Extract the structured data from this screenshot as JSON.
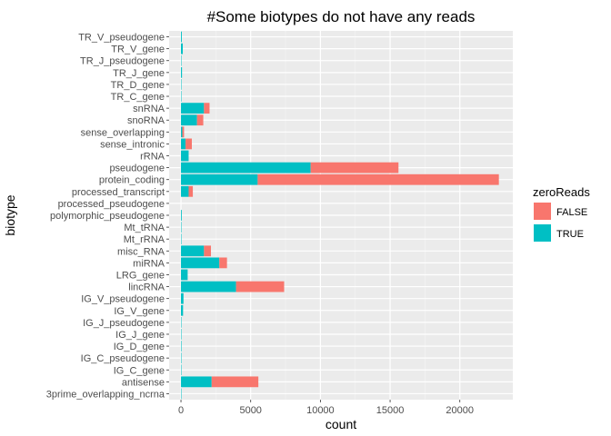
{
  "chart_data": {
    "type": "bar",
    "orientation": "horizontal",
    "stacked": true,
    "title": "#Some biotypes do not have any reads",
    "xlabel": "count",
    "ylabel": "biotype",
    "xlim": [
      -850,
      23800
    ],
    "xticks": [
      0,
      5000,
      10000,
      15000,
      20000
    ],
    "xtick_labels": [
      "0",
      "5000",
      "10000",
      "15000",
      "20000"
    ],
    "grid": true,
    "legend": {
      "title": "zeroReads",
      "position": "right",
      "entries": [
        {
          "label": "FALSE",
          "color": "#F8766D"
        },
        {
          "label": "TRUE",
          "color": "#00BFC4"
        }
      ]
    },
    "categories": [
      "3prime_overlapping_ncrna",
      "antisense",
      "IG_C_gene",
      "IG_C_pseudogene",
      "IG_D_gene",
      "IG_J_gene",
      "IG_J_pseudogene",
      "IG_V_gene",
      "IG_V_pseudogene",
      "lincRNA",
      "LRG_gene",
      "miRNA",
      "misc_RNA",
      "Mt_rRNA",
      "Mt_tRNA",
      "polymorphic_pseudogene",
      "processed_pseudogene",
      "processed_transcript",
      "protein_coding",
      "pseudogene",
      "rRNA",
      "sense_intronic",
      "sense_overlapping",
      "snoRNA",
      "snRNA",
      "TR_C_gene",
      "TR_D_gene",
      "TR_J_gene",
      "TR_J_pseudogene",
      "TR_V_gene",
      "TR_V_pseudogene"
    ],
    "series": [
      {
        "name": "TRUE",
        "color": "#00BFC4",
        "values": [
          30,
          2200,
          14,
          9,
          37,
          18,
          3,
          150,
          180,
          3950,
          480,
          2750,
          1650,
          2,
          22,
          55,
          0,
          550,
          5500,
          9300,
          550,
          330,
          100,
          1150,
          1650,
          5,
          3,
          74,
          4,
          130,
          60
        ]
      },
      {
        "name": "FALSE",
        "color": "#F8766D",
        "values": [
          0,
          3350,
          0,
          0,
          0,
          0,
          0,
          0,
          0,
          3450,
          0,
          550,
          500,
          0,
          0,
          0,
          0,
          300,
          17300,
          6300,
          0,
          450,
          120,
          450,
          400,
          0,
          0,
          0,
          0,
          0,
          0
        ]
      }
    ]
  }
}
